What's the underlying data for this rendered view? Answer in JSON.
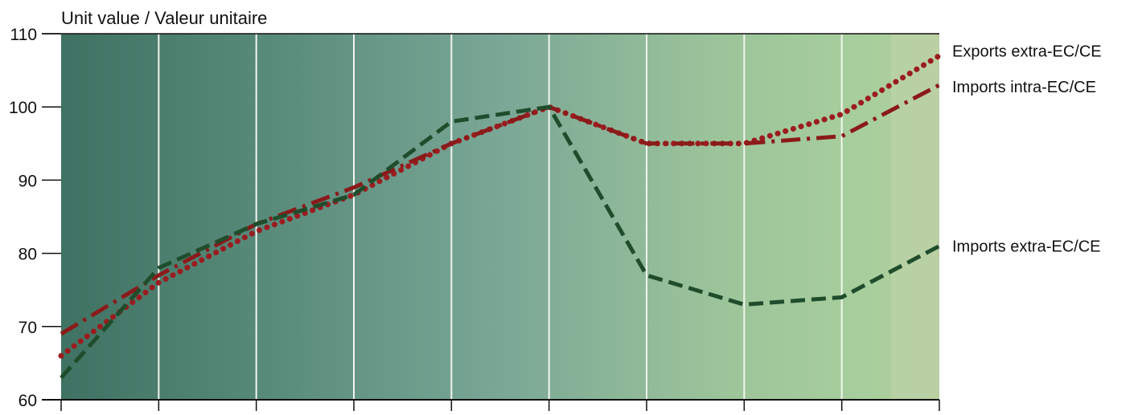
{
  "chart_data": {
    "type": "line",
    "title": "Unit value / Valeur unitaire",
    "xlabel": "",
    "ylabel": "",
    "ylim": [
      60,
      110
    ],
    "yticks": [
      60,
      70,
      80,
      90,
      100,
      110
    ],
    "x": [
      0,
      1,
      2,
      3,
      4,
      5,
      6,
      7,
      8,
      9
    ],
    "grid": "vertical",
    "series": [
      {
        "name": "Exports extra-EC/CE",
        "style": "dotted",
        "color": "#9b1c1f",
        "values": [
          66,
          76,
          83,
          88,
          95,
          100,
          95,
          95,
          99,
          107
        ]
      },
      {
        "name": "Imports intra-EC/CE",
        "style": "dash-dot",
        "color": "#8b1a1a",
        "values": [
          69,
          77,
          84,
          89,
          95,
          100,
          95,
          95,
          96,
          103
        ]
      },
      {
        "name": "Imports extra-EC/CE",
        "style": "dashed",
        "color": "#1f4d2c",
        "values": [
          63,
          78,
          84,
          88,
          98,
          100,
          77,
          73,
          74,
          81
        ]
      }
    ]
  }
}
